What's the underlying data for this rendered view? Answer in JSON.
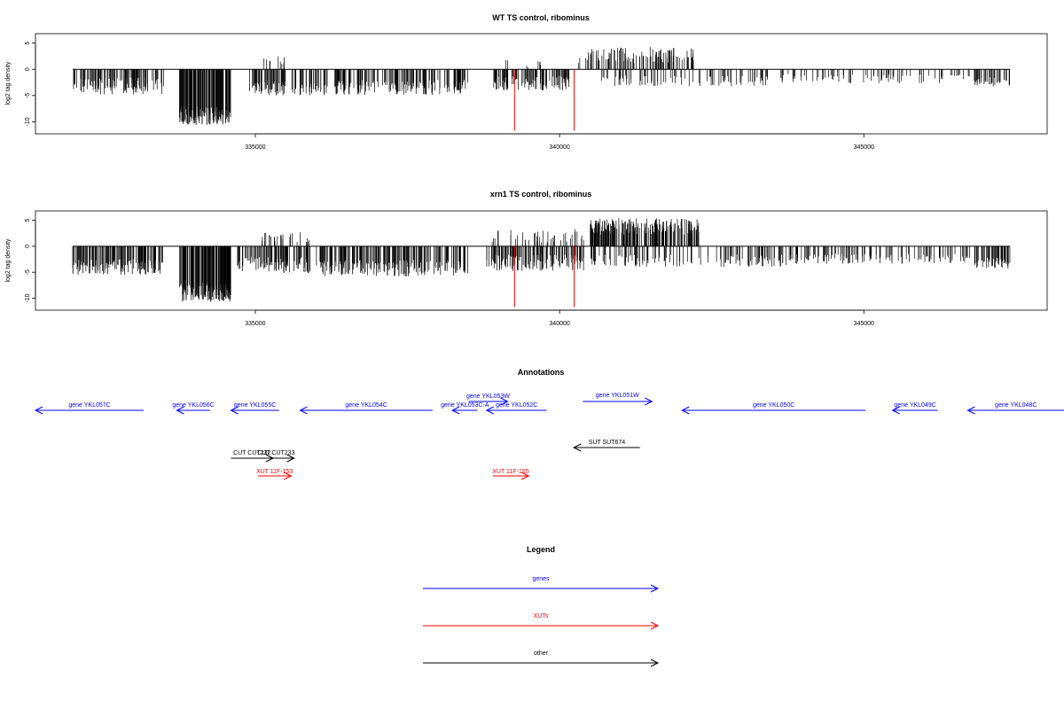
{
  "panels": [
    {
      "title": "WT TS control, ribominus",
      "ylabel": "log2 tag density",
      "yticks": [
        -10,
        -5,
        0,
        5
      ],
      "ylim": [
        -12.3,
        6.8
      ],
      "xlim": [
        331700,
        347700
      ],
      "xticks": [
        335000,
        340000,
        345000
      ],
      "red_lines_x": [
        339260,
        340240
      ],
      "red_lines_y": [
        0,
        -11.7
      ],
      "segments": [
        {
          "x": [
            332000,
            333500
          ],
          "y": -3.2,
          "amp": 1.6,
          "n": 120
        },
        {
          "x": [
            333750,
            334600
          ],
          "y": -8.8,
          "amp": 1.8,
          "n": 140
        },
        {
          "x": [
            334900,
            335500
          ],
          "y": -3.6,
          "amp": 1.4,
          "n": 60
        },
        {
          "x": [
            335100,
            335500
          ],
          "y": 1.8,
          "amp": 1.0,
          "n": 10
        },
        {
          "x": [
            335600,
            336200
          ],
          "y": -3.8,
          "amp": 1.2,
          "n": 40
        },
        {
          "x": [
            336300,
            338500
          ],
          "y": -3.4,
          "amp": 1.5,
          "n": 170
        },
        {
          "x": [
            338900,
            340200
          ],
          "y": -2.6,
          "amp": 1.4,
          "n": 110
        },
        {
          "x": [
            338900,
            339700
          ],
          "y": 1.0,
          "amp": 0.8,
          "n": 8
        },
        {
          "x": [
            340300,
            342200
          ],
          "y": 2.8,
          "amp": 1.6,
          "n": 110
        },
        {
          "x": [
            340600,
            343500
          ],
          "y": -2.2,
          "amp": 1.0,
          "n": 90
        },
        {
          "x": [
            343600,
            346800
          ],
          "y": -1.8,
          "amp": 0.9,
          "n": 80
        },
        {
          "x": [
            346800,
            347400
          ],
          "y": -2.4,
          "amp": 0.9,
          "n": 40
        }
      ]
    },
    {
      "title": "xrn1 TS control, ribominus",
      "ylabel": "log2 tag density",
      "yticks": [
        -10,
        -5,
        0,
        5
      ],
      "ylim": [
        -12.3,
        6.8
      ],
      "xlim": [
        331700,
        347700
      ],
      "xticks": [
        335000,
        340000,
        345000
      ],
      "red_lines_x": [
        339260,
        340240
      ],
      "red_lines_y": [
        0,
        -11.7
      ],
      "segments": [
        {
          "x": [
            332000,
            333500
          ],
          "y": -4.0,
          "amp": 1.5,
          "n": 150
        },
        {
          "x": [
            333750,
            334600
          ],
          "y": -8.8,
          "amp": 1.9,
          "n": 170
        },
        {
          "x": [
            334700,
            335900
          ],
          "y": -3.6,
          "amp": 1.6,
          "n": 110
        },
        {
          "x": [
            335100,
            335900
          ],
          "y": 2.0,
          "amp": 1.2,
          "n": 25
        },
        {
          "x": [
            336000,
            338500
          ],
          "y": -4.2,
          "amp": 1.6,
          "n": 200
        },
        {
          "x": [
            338800,
            340400
          ],
          "y": -3.2,
          "amp": 1.6,
          "n": 140
        },
        {
          "x": [
            338800,
            340400
          ],
          "y": 2.0,
          "amp": 1.3,
          "n": 40
        },
        {
          "x": [
            340500,
            342300
          ],
          "y": 3.8,
          "amp": 1.6,
          "n": 200
        },
        {
          "x": [
            340500,
            343800
          ],
          "y": -2.8,
          "amp": 1.2,
          "n": 130
        },
        {
          "x": [
            343800,
            346800
          ],
          "y": -2.4,
          "amp": 1.0,
          "n": 120
        },
        {
          "x": [
            346800,
            347400
          ],
          "y": -3.2,
          "amp": 1.1,
          "n": 50
        }
      ]
    }
  ],
  "annotations": {
    "title": "Annotations",
    "items": [
      {
        "label": "gene YKL057C",
        "x1": 331700,
        "x2": 333500,
        "dir": "left",
        "color": "#0000ff",
        "row": 0
      },
      {
        "label": "gene YKL056C",
        "x1": 334050,
        "x2": 334600,
        "dir": "left",
        "color": "#0000ff",
        "row": 0
      },
      {
        "label": "gene YKL055C",
        "x1": 334950,
        "x2": 335750,
        "dir": "left",
        "color": "#0000ff",
        "row": 0
      },
      {
        "label": "gene YKL054C",
        "x1": 336100,
        "x2": 338300,
        "dir": "left",
        "color": "#0000ff",
        "row": 0
      },
      {
        "label": "gene YKL053C-A",
        "x1": 338630,
        "x2": 339050,
        "dir": "left",
        "color": "#0000ff",
        "row": 0
      },
      {
        "label": "gene YKL052C",
        "x1": 339200,
        "x2": 340200,
        "dir": "left",
        "color": "#0000ff",
        "row": 0
      },
      {
        "label": "gene YKL053W",
        "x1": 338900,
        "x2": 339550,
        "dir": "right",
        "color": "#0000ff",
        "row": 1
      },
      {
        "label": "gene YKL051W",
        "x1": 340800,
        "x2": 341950,
        "dir": "right",
        "color": "#0000ff",
        "row": 2
      },
      {
        "label": "gene YKL050C",
        "x1": 342450,
        "x2": 345500,
        "dir": "left",
        "color": "#0000ff",
        "row": 0
      },
      {
        "label": "gene YKL049C",
        "x1": 345950,
        "x2": 346700,
        "dir": "left",
        "color": "#0000ff",
        "row": 0
      },
      {
        "label": "gene YKL048C",
        "x1": 347200,
        "x2": 348800,
        "dir": "left",
        "color": "#0000ff",
        "row": 0
      },
      {
        "label": "SUT SUT674",
        "x1": 340650,
        "x2": 341750,
        "dir": "left",
        "color": "#000000",
        "row": 3
      },
      {
        "label": "CUT CUT232",
        "x1": 334950,
        "x2": 335650,
        "dir": "right",
        "color": "#000000",
        "row": 4
      },
      {
        "label": "CUT CUT233",
        "x1": 335400,
        "x2": 336000,
        "dir": "right",
        "color": "#000000",
        "row": 4
      },
      {
        "label": "XUT 11F-153",
        "x1": 335400,
        "x2": 335950,
        "dir": "right",
        "color": "#ff0000",
        "row": 5
      },
      {
        "label": "XUT 11F-155",
        "x1": 339300,
        "x2": 339900,
        "dir": "right",
        "color": "#ff0000",
        "row": 5
      }
    ]
  },
  "legend": {
    "title": "Legend",
    "items": [
      {
        "label": "genes",
        "color": "#0000ff"
      },
      {
        "label": "XUTs",
        "color": "#ff0000"
      },
      {
        "label": "other",
        "color": "#000000"
      }
    ]
  }
}
